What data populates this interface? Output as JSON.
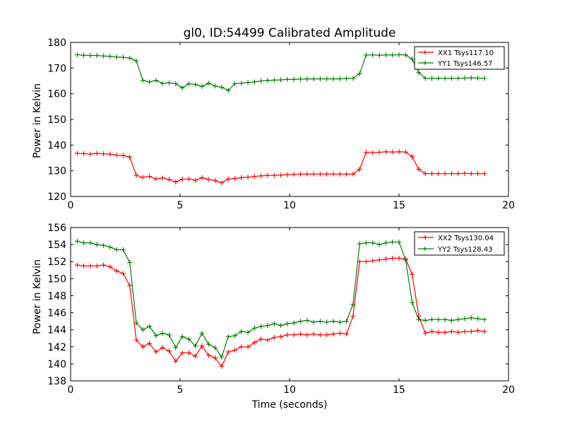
{
  "chart_data": [
    {
      "type": "line",
      "title": "gl0, ID:54499 Calibrated Amplitude",
      "xlabel": "",
      "ylabel": "Power in Kelvin",
      "xlim": [
        0,
        20
      ],
      "ylim": [
        120,
        180
      ],
      "xticks": [
        0,
        5,
        10,
        15,
        20
      ],
      "yticks": [
        120,
        130,
        140,
        150,
        160,
        170,
        180
      ],
      "legend_position": "top-right",
      "x": [
        0.3,
        0.6,
        0.9,
        1.2,
        1.5,
        1.8,
        2.1,
        2.4,
        2.7,
        3.0,
        3.3,
        3.6,
        3.9,
        4.2,
        4.5,
        4.8,
        5.1,
        5.4,
        5.7,
        6.0,
        6.3,
        6.6,
        6.9,
        7.2,
        7.5,
        7.8,
        8.1,
        8.4,
        8.7,
        9.0,
        9.3,
        9.6,
        9.9,
        10.2,
        10.5,
        10.8,
        11.1,
        11.4,
        11.7,
        12.0,
        12.3,
        12.6,
        12.9,
        13.2,
        13.5,
        13.8,
        14.1,
        14.4,
        14.7,
        15.0,
        15.3,
        15.6,
        15.9,
        16.2,
        16.5,
        16.8,
        17.1,
        17.4,
        17.7,
        18.0,
        18.3,
        18.6,
        18.9
      ],
      "series": [
        {
          "name": "XX1 Tsys117.10",
          "color": "#ff0000",
          "values": [
            136.8,
            136.7,
            136.5,
            136.8,
            136.6,
            136.5,
            136.1,
            136.0,
            135.3,
            128.2,
            127.4,
            127.8,
            126.8,
            127.2,
            126.6,
            125.6,
            126.7,
            126.8,
            126.3,
            127.3,
            126.6,
            126.2,
            125.3,
            126.8,
            127.0,
            127.3,
            127.5,
            127.8,
            128.0,
            128.2,
            128.2,
            128.3,
            128.5,
            128.6,
            128.7,
            128.7,
            128.7,
            128.7,
            128.7,
            128.7,
            128.7,
            128.7,
            128.7,
            130.6,
            137.2,
            137.0,
            137.2,
            137.4,
            137.3,
            137.4,
            137.3,
            135.5,
            130.6,
            128.9,
            128.9,
            128.9,
            128.9,
            128.9,
            128.9,
            129.0,
            128.9,
            128.9,
            128.9
          ]
        },
        {
          "name": "YY1 Tsys146.57",
          "color": "#008000",
          "values": [
            175.2,
            175.0,
            174.9,
            174.9,
            174.7,
            174.6,
            174.3,
            174.2,
            173.9,
            172.8,
            165.2,
            164.6,
            165.2,
            164.0,
            164.3,
            163.9,
            162.3,
            163.9,
            163.6,
            162.8,
            164.1,
            163.0,
            162.5,
            161.3,
            163.9,
            164.1,
            164.4,
            164.6,
            165.0,
            165.2,
            165.3,
            165.4,
            165.6,
            165.6,
            165.7,
            165.8,
            165.8,
            165.8,
            165.8,
            165.8,
            165.8,
            165.9,
            166.0,
            167.8,
            175.1,
            175.1,
            175.0,
            175.1,
            175.1,
            175.2,
            175.1,
            173.5,
            168.3,
            166.0,
            166.0,
            166.0,
            166.0,
            166.0,
            166.0,
            166.1,
            166.2,
            166.1,
            166.0
          ]
        }
      ]
    },
    {
      "type": "line",
      "title": "",
      "xlabel": "Time (seconds)",
      "ylabel": "Power in Kelvin",
      "xlim": [
        0,
        20
      ],
      "ylim": [
        138,
        156
      ],
      "xticks": [
        0,
        5,
        10,
        15,
        20
      ],
      "yticks": [
        138,
        140,
        142,
        144,
        146,
        148,
        150,
        152,
        154,
        156
      ],
      "legend_position": "top-right",
      "x": [
        0.3,
        0.6,
        0.9,
        1.2,
        1.5,
        1.8,
        2.1,
        2.4,
        2.7,
        3.0,
        3.3,
        3.6,
        3.9,
        4.2,
        4.5,
        4.8,
        5.1,
        5.4,
        5.7,
        6.0,
        6.3,
        6.6,
        6.9,
        7.2,
        7.5,
        7.8,
        8.1,
        8.4,
        8.7,
        9.0,
        9.3,
        9.6,
        9.9,
        10.2,
        10.5,
        10.8,
        11.1,
        11.4,
        11.7,
        12.0,
        12.3,
        12.6,
        12.9,
        13.2,
        13.5,
        13.8,
        14.1,
        14.4,
        14.7,
        15.0,
        15.3,
        15.6,
        15.9,
        16.2,
        16.5,
        16.8,
        17.1,
        17.4,
        17.7,
        18.0,
        18.3,
        18.6,
        18.9
      ],
      "series": [
        {
          "name": "XX2 Tsys130.04",
          "color": "#ff0000",
          "values": [
            151.6,
            151.5,
            151.5,
            151.5,
            151.6,
            151.4,
            150.9,
            150.6,
            149.2,
            142.8,
            142.0,
            142.4,
            141.4,
            141.9,
            141.5,
            140.3,
            141.3,
            141.3,
            140.9,
            142.1,
            141.0,
            140.7,
            139.7,
            141.4,
            141.6,
            142.0,
            142.0,
            142.5,
            142.9,
            142.8,
            143.1,
            143.2,
            143.4,
            143.4,
            143.5,
            143.4,
            143.5,
            143.4,
            143.4,
            143.5,
            143.6,
            143.5,
            145.6,
            152.0,
            152.0,
            152.1,
            152.2,
            152.3,
            152.4,
            152.4,
            152.3,
            150.5,
            145.6,
            143.6,
            143.8,
            143.7,
            143.7,
            143.8,
            143.7,
            143.8,
            143.8,
            143.9,
            143.8
          ]
        },
        {
          "name": "YY2 Tsys128.43",
          "color": "#008000",
          "values": [
            154.4,
            154.2,
            154.2,
            154.0,
            153.9,
            153.7,
            153.4,
            153.4,
            151.9,
            144.8,
            144.0,
            144.4,
            143.3,
            143.6,
            143.4,
            141.9,
            143.2,
            142.9,
            142.1,
            143.6,
            142.3,
            141.9,
            140.8,
            143.2,
            143.3,
            143.8,
            143.7,
            144.2,
            144.4,
            144.5,
            144.7,
            144.5,
            144.7,
            144.8,
            145.0,
            145.1,
            144.9,
            145.0,
            144.9,
            145.0,
            144.9,
            145.0,
            147.0,
            154.1,
            154.2,
            154.2,
            154.0,
            154.2,
            154.3,
            154.3,
            152.2,
            147.2,
            145.2,
            145.1,
            145.2,
            145.2,
            145.2,
            145.1,
            145.2,
            145.3,
            145.4,
            145.3,
            145.2
          ]
        }
      ]
    }
  ]
}
